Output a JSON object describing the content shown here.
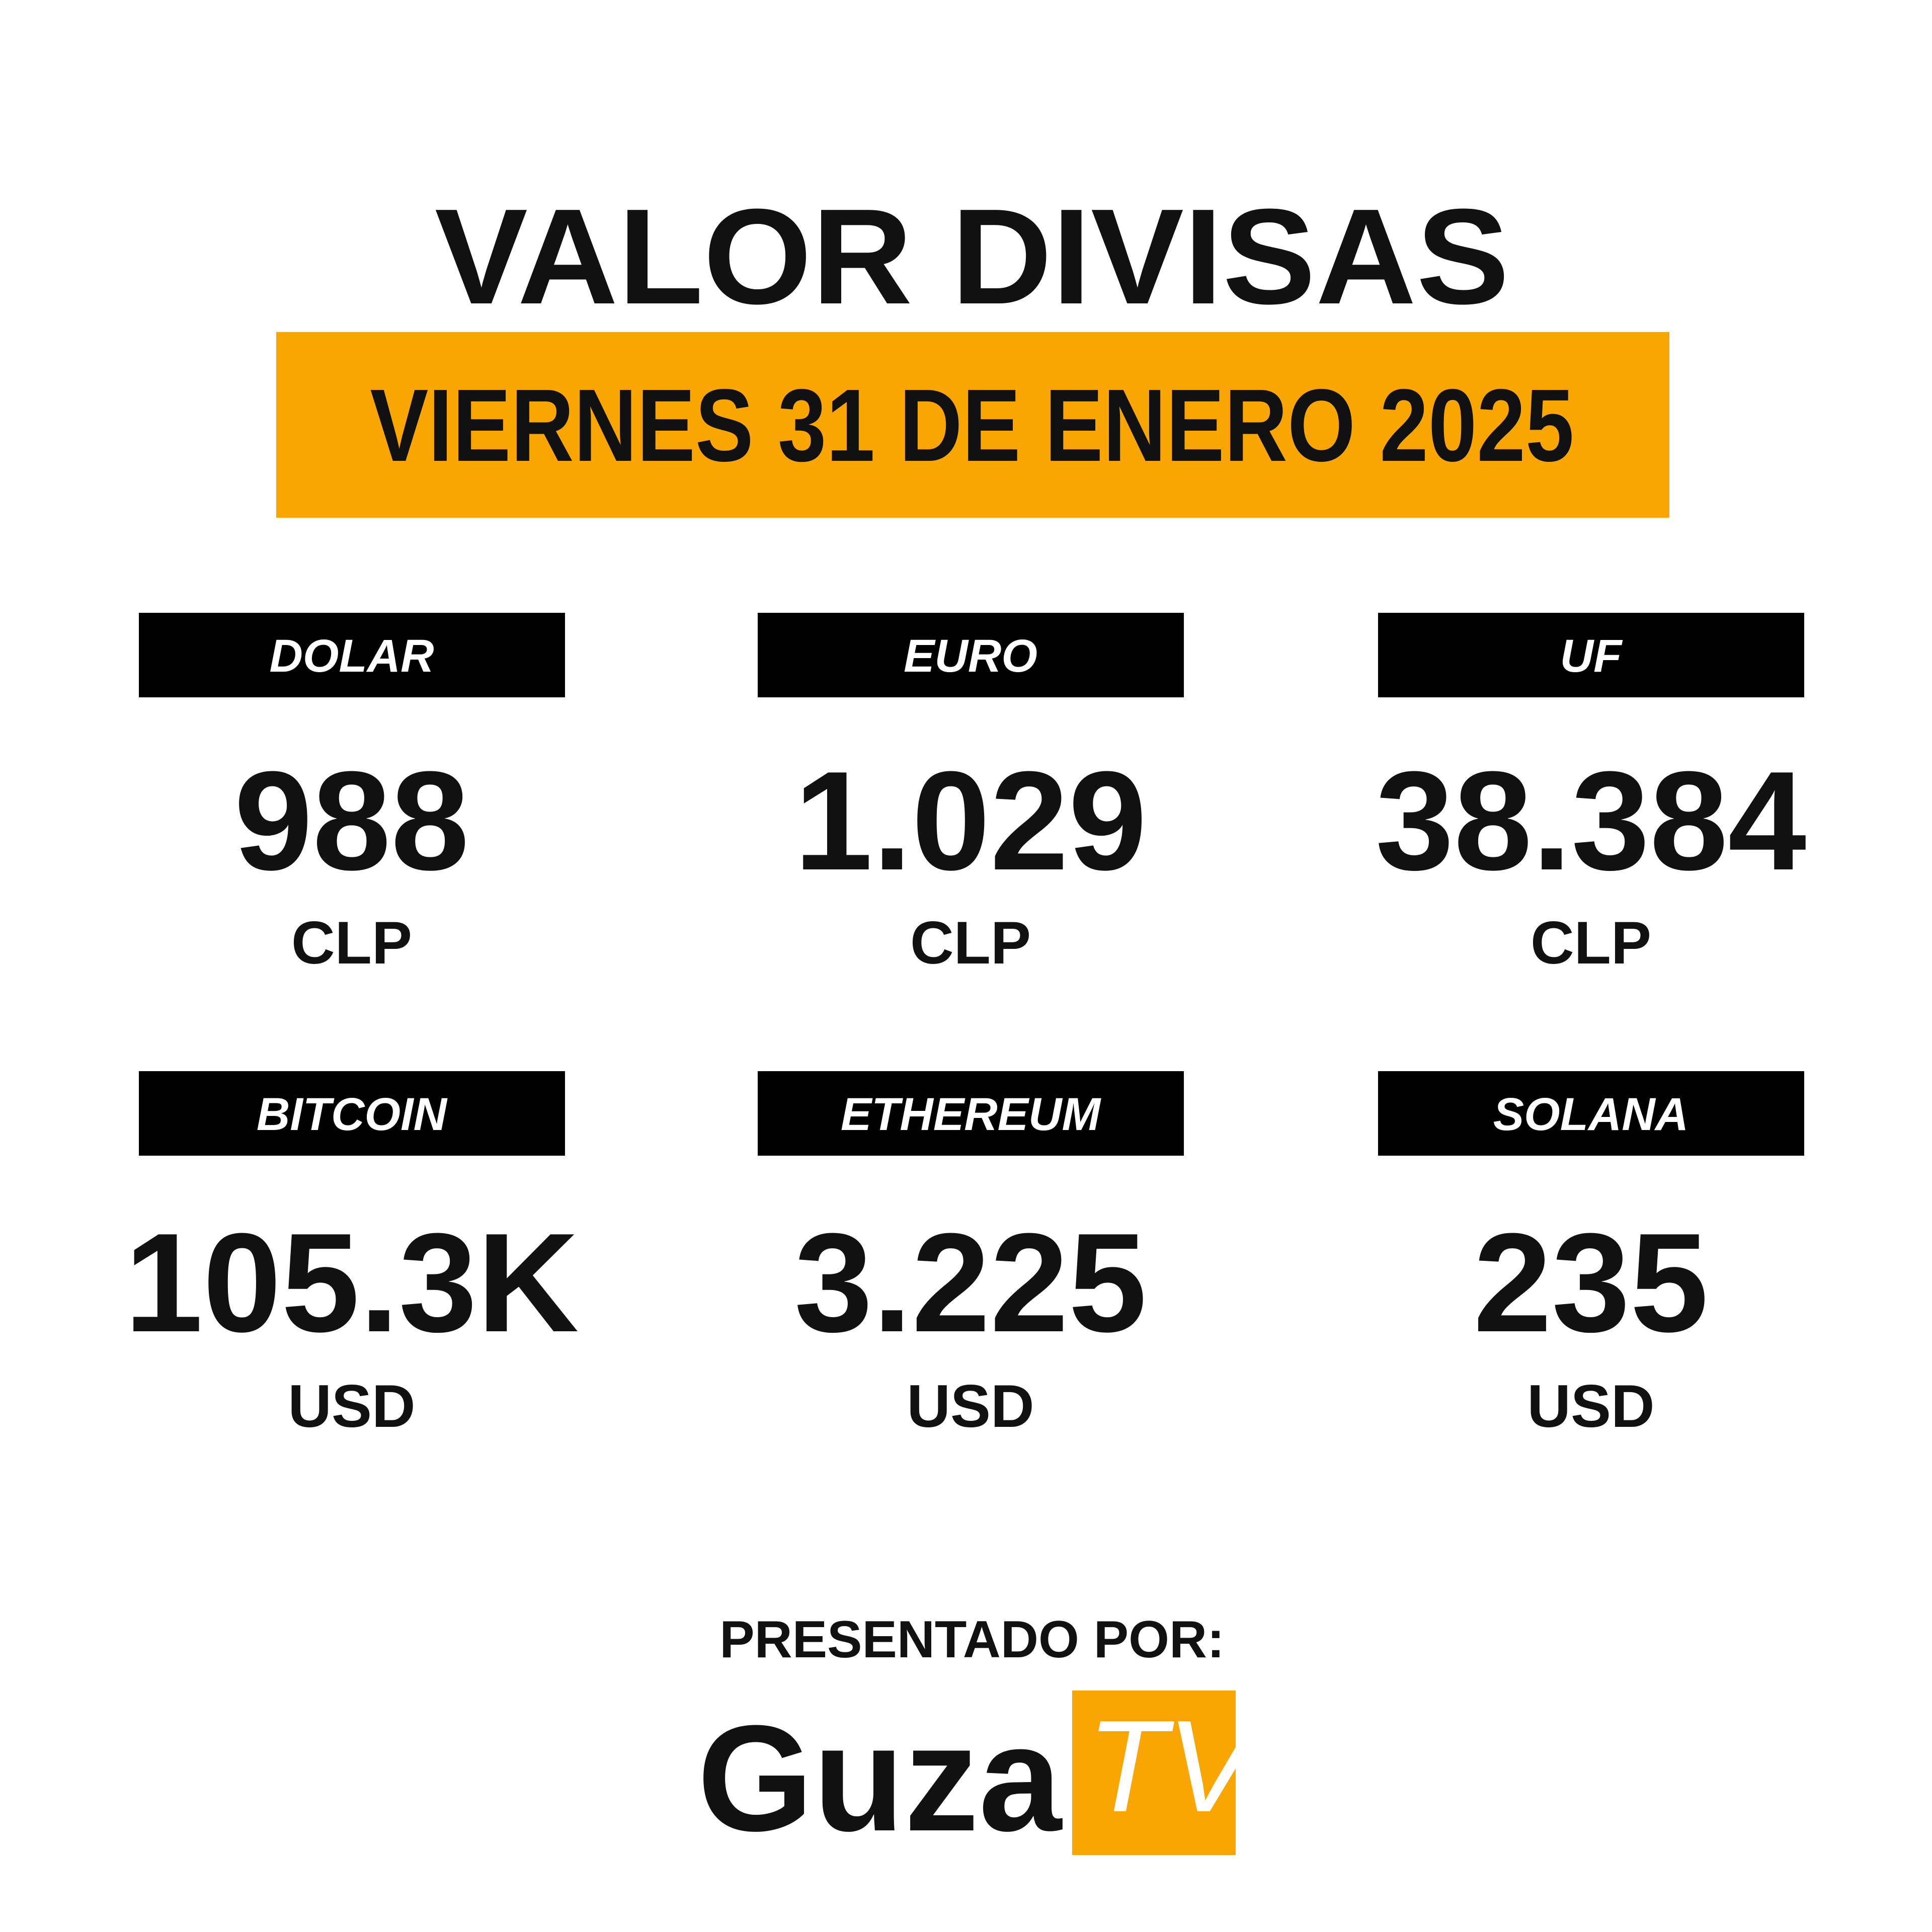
{
  "header": {
    "title": "VALOR DIVISAS",
    "date": "VIERNES 31 DE ENERO 2025"
  },
  "items": [
    {
      "name": "DOLAR",
      "value": "988",
      "unit": "CLP"
    },
    {
      "name": "EURO",
      "value": "1.029",
      "unit": "CLP"
    },
    {
      "name": "UF",
      "value": "38.384",
      "unit": "CLP"
    },
    {
      "name": "BITCOIN",
      "value": "105.3K",
      "unit": "USD"
    },
    {
      "name": "ETHEREUM",
      "value": "3.225",
      "unit": "USD"
    },
    {
      "name": "SOLANA",
      "value": "235",
      "unit": "USD"
    }
  ],
  "footer": {
    "presented_by": "PRESENTADO POR:",
    "brand": "Guza",
    "brand_tv": "TV"
  }
}
